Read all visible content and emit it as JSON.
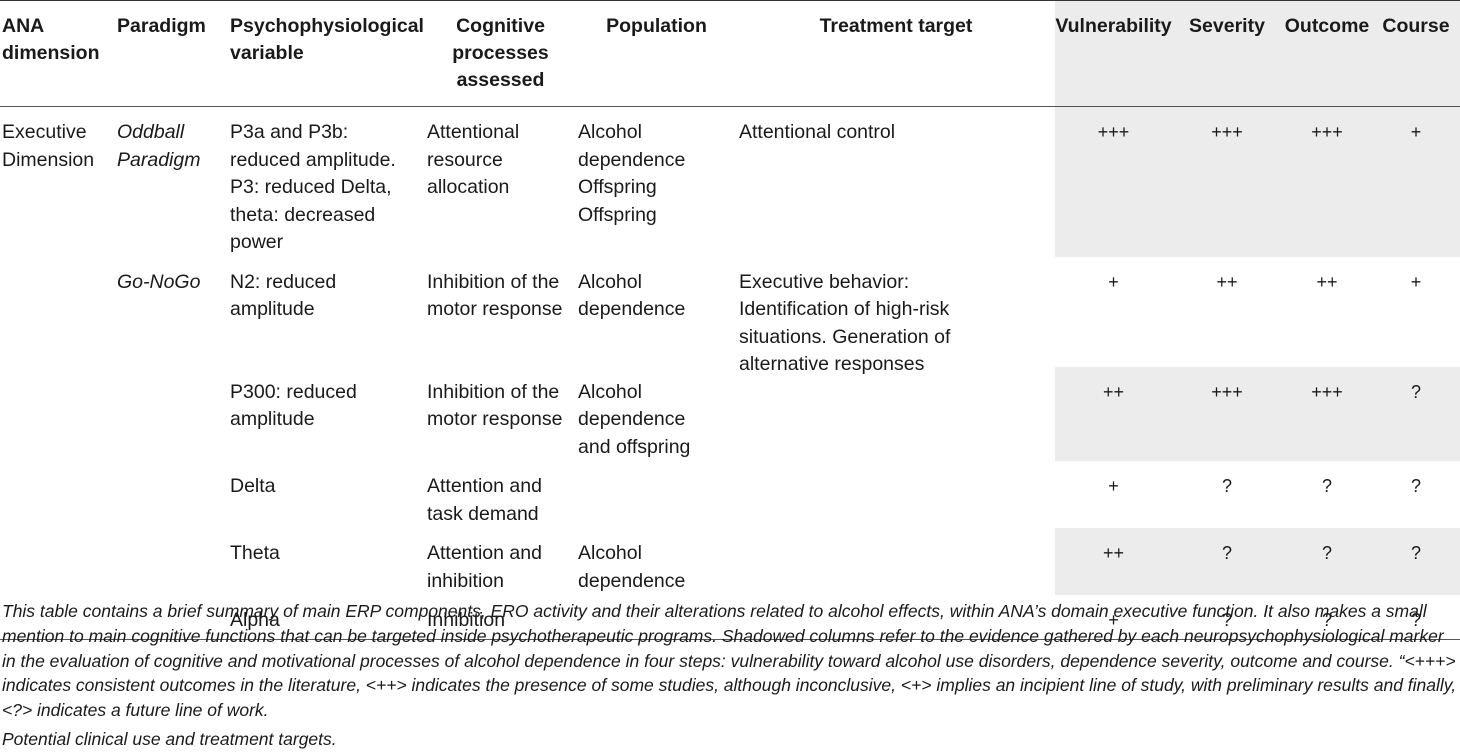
{
  "headers": {
    "ana_dimension": "ANA dimension",
    "paradigm": "Paradigm",
    "psychophysiological_variable": "Psychophysiological variable",
    "cognitive_processes": "Cognitive processes assessed",
    "population": "Population",
    "treatment_target": "Treatment target",
    "vulnerability": "Vulnerability",
    "severity": "Severity",
    "outcome": "Outcome",
    "course": "Course"
  },
  "rows": [
    {
      "ana": "Executive Dimension",
      "paradigm": "Oddball Paradigm",
      "variable": "P3a and P3b: reduced amplitude. P3: reduced Delta, theta: decreased power",
      "cognitive": "Attentional resource allocation",
      "population": "Alcohol dependence Offspring Offspring",
      "treatment": "Attentional control",
      "vulnerability": "+++",
      "severity": "+++",
      "outcome": "+++",
      "course": "+"
    },
    {
      "paradigm": "Go-NoGo",
      "variable": "N2: reduced amplitude",
      "cognitive": "Inhibition of the motor response",
      "population": "Alcohol dependence",
      "treatment": "Executive behavior: Identification of high-risk situations. Generation of alternative responses",
      "vulnerability": "+",
      "severity": "++",
      "outcome": "++",
      "course": "+"
    },
    {
      "variable": "P300: reduced amplitude",
      "cognitive": "Inhibition of the motor response",
      "population": "Alcohol dependence and offspring",
      "vulnerability": "++",
      "severity": "+++",
      "outcome": "+++",
      "course": "?"
    },
    {
      "variable": "Delta",
      "cognitive": "Attention and task demand",
      "vulnerability": "+",
      "severity": "?",
      "outcome": "?",
      "course": "?"
    },
    {
      "variable": "Theta",
      "cognitive": "Attention and inhibition",
      "population": "Alcohol dependence",
      "vulnerability": "++",
      "severity": "?",
      "outcome": "?",
      "course": "?"
    },
    {
      "variable": "Alpha",
      "cognitive": "Inhibition",
      "vulnerability": "+",
      "severity": "?",
      "outcome": "?",
      "course": "?"
    }
  ],
  "footnote": "This table contains a brief summary of main ERP components, ERO activity and their alterations related to alcohol effects, within ANA’s domain executive function. It also makes a small mention to main cognitive functions that can be targeted inside psychotherapeutic programs. Shadowed columns refer to the evidence gathered by each neuropsychophysiological marker in the evaluation of cognitive and motivational processes of alcohol dependence in four steps: vulnerability toward alcohol use disorders, dependence severity, outcome and course. “<+++> indicates consistent outcomes in the literature, <++> indicates the presence of some studies, although inconclusive, <+> implies an incipient line of study, with preliminary results and finally, <?> indicates a future line of work.",
  "footnote2": " Potential clinical use and treatment targets."
}
